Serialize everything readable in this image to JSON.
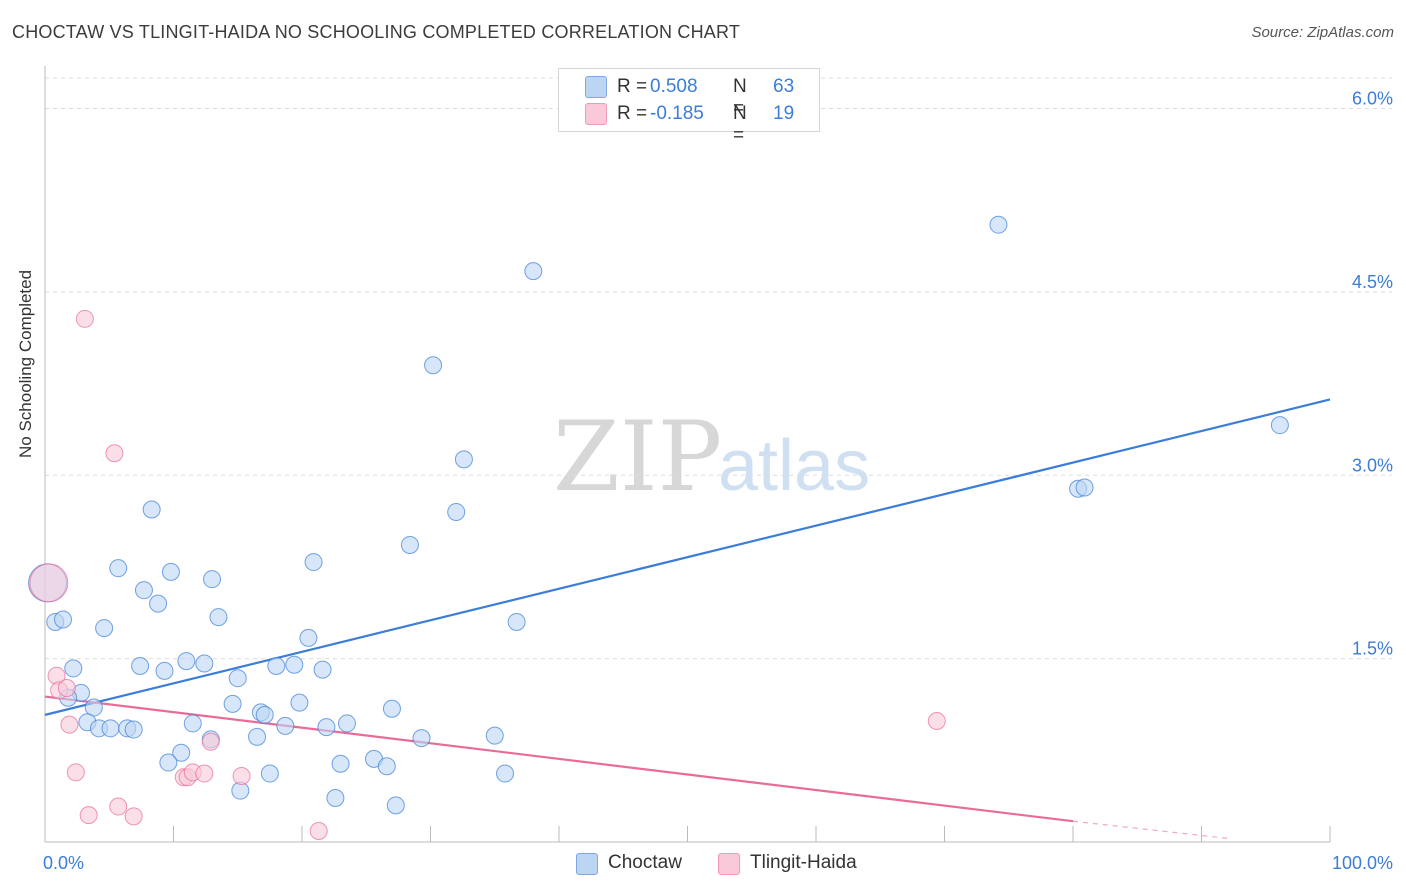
{
  "header": {
    "title": "CHOCTAW VS TLINGIT-HAIDA NO SCHOOLING COMPLETED CORRELATION CHART",
    "source": "Source: ZipAtlas.com"
  },
  "legend": {
    "rows": [
      {
        "r_label": "R = ",
        "r_value": "0.508",
        "n_label": "N = ",
        "n_value": "63",
        "color": "#9cc3ee"
      },
      {
        "r_label": "R = ",
        "r_value": "-0.185",
        "n_label": "N = ",
        "n_value": "19",
        "color": "#f5b2c8"
      }
    ]
  },
  "bottom_legend": [
    {
      "label": "Choctaw",
      "color": "#9cc3ee"
    },
    {
      "label": "Tlingit-Haida",
      "color": "#f5b2c8"
    }
  ],
  "watermark": {
    "zip": "ZIP",
    "atlas": "atlas"
  },
  "chart_data": {
    "type": "scatter",
    "title": "CHOCTAW VS TLINGIT-HAIDA NO SCHOOLING COMPLETED CORRELATION CHART",
    "xlabel": "",
    "ylabel": "No Schooling Completed",
    "xlim": [
      0,
      100
    ],
    "ylim": [
      0,
      6.25
    ],
    "x_tick_labels": [
      {
        "value": 0,
        "label": "0.0%"
      },
      {
        "value": 100,
        "label": "100.0%"
      }
    ],
    "y_tick_labels": [
      {
        "value": 1.5,
        "label": "1.5%"
      },
      {
        "value": 3.0,
        "label": "3.0%"
      },
      {
        "value": 4.5,
        "label": "4.5%"
      },
      {
        "value": 6.0,
        "label": "6.0%"
      }
    ],
    "grid": "horizontal dashed",
    "legend_position": "top-center",
    "series": [
      {
        "name": "Choctaw",
        "color": "#3b7dd8",
        "fill": "#bcd5f3",
        "points": [
          [
            0.2,
            2.12
          ],
          [
            0.8,
            1.8
          ],
          [
            1.4,
            1.82
          ],
          [
            2.2,
            1.42
          ],
          [
            2.8,
            1.22
          ],
          [
            1.8,
            1.18
          ],
          [
            3.8,
            1.1
          ],
          [
            3.3,
            0.98
          ],
          [
            4.2,
            0.93
          ],
          [
            5.1,
            0.93
          ],
          [
            6.4,
            0.93
          ],
          [
            6.9,
            0.92
          ],
          [
            4.6,
            1.75
          ],
          [
            5.7,
            2.24
          ],
          [
            7.7,
            2.06
          ],
          [
            8.3,
            2.72
          ],
          [
            8.8,
            1.95
          ],
          [
            7.4,
            1.44
          ],
          [
            9.8,
            2.21
          ],
          [
            9.3,
            1.4
          ],
          [
            11.0,
            1.48
          ],
          [
            12.4,
            1.46
          ],
          [
            13.5,
            1.84
          ],
          [
            13.0,
            2.15
          ],
          [
            11.5,
            0.97
          ],
          [
            10.6,
            0.73
          ],
          [
            9.6,
            0.65
          ],
          [
            12.9,
            0.84
          ],
          [
            15.0,
            1.34
          ],
          [
            14.6,
            1.13
          ],
          [
            16.5,
            0.86
          ],
          [
            16.8,
            1.06
          ],
          [
            17.1,
            1.04
          ],
          [
            17.5,
            0.56
          ],
          [
            18.0,
            1.44
          ],
          [
            18.7,
            0.95
          ],
          [
            19.4,
            1.45
          ],
          [
            19.8,
            1.14
          ],
          [
            20.5,
            1.67
          ],
          [
            20.9,
            2.29
          ],
          [
            21.6,
            1.41
          ],
          [
            21.9,
            0.94
          ],
          [
            22.6,
            0.36
          ],
          [
            23.0,
            0.64
          ],
          [
            23.5,
            0.97
          ],
          [
            25.6,
            0.68
          ],
          [
            26.6,
            0.62
          ],
          [
            27.0,
            1.09
          ],
          [
            27.3,
            0.3
          ],
          [
            28.4,
            2.43
          ],
          [
            29.3,
            0.85
          ],
          [
            30.2,
            3.9
          ],
          [
            32.0,
            2.7
          ],
          [
            32.6,
            3.13
          ],
          [
            35.0,
            0.87
          ],
          [
            35.8,
            0.56
          ],
          [
            36.7,
            1.8
          ],
          [
            38.0,
            4.67
          ],
          [
            15.2,
            0.42
          ],
          [
            74.2,
            5.05
          ],
          [
            80.4,
            2.89
          ],
          [
            80.9,
            2.9
          ],
          [
            96.1,
            3.41
          ]
        ],
        "trend": {
          "x": [
            0,
            100
          ],
          "y": [
            1.04,
            3.62
          ]
        }
      },
      {
        "name": "Tlingit-Haida",
        "color": "#e86b98",
        "fill": "#f9c9d9",
        "points": [
          [
            0.3,
            2.12
          ],
          [
            0.9,
            1.36
          ],
          [
            1.1,
            1.24
          ],
          [
            1.7,
            1.26
          ],
          [
            1.9,
            0.96
          ],
          [
            2.4,
            0.57
          ],
          [
            3.4,
            0.22
          ],
          [
            3.1,
            4.28
          ],
          [
            5.4,
            3.18
          ],
          [
            5.7,
            0.29
          ],
          [
            6.9,
            0.21
          ],
          [
            10.8,
            0.53
          ],
          [
            11.1,
            0.53
          ],
          [
            11.5,
            0.57
          ],
          [
            12.4,
            0.56
          ],
          [
            12.9,
            0.82
          ],
          [
            15.3,
            0.54
          ],
          [
            21.3,
            0.09
          ],
          [
            69.4,
            0.99
          ]
        ],
        "trend": {
          "x": [
            0,
            80
          ],
          "y": [
            1.19,
            0.17
          ]
        },
        "trend_dashed": {
          "x": [
            80,
            92
          ],
          "y": [
            0.17,
            0.03
          ]
        }
      }
    ]
  }
}
